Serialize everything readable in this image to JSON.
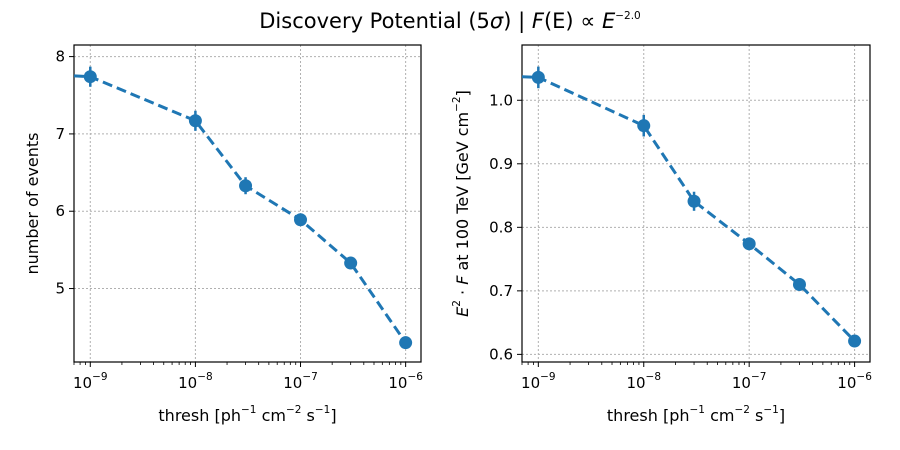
{
  "figure": {
    "title": "Discovery Potential (5σ) | F(E) ∝ E⁻²·⁰",
    "title_parts": {
      "prefix": "Discovery Potential (5",
      "sigma": "σ",
      "mid": ") | ",
      "F": "F",
      "E_paren": "(E)",
      "prop": " ∝ ",
      "E": "E",
      "exponent": "−2.0"
    }
  },
  "colors": {
    "series": "#1f77b4",
    "grid": "#b0b0b0"
  },
  "chart_data": [
    {
      "type": "line",
      "xscale": "log",
      "xlim": [
        7e-10,
        1.4e-06
      ],
      "ylim": [
        4.05,
        8.15
      ],
      "xticks": [
        1e-09,
        1e-08,
        1e-07,
        1e-06
      ],
      "xtick_labels": [
        {
          "base": "10",
          "exp": "−9"
        },
        {
          "base": "10",
          "exp": "−8"
        },
        {
          "base": "10",
          "exp": "−7"
        },
        {
          "base": "10",
          "exp": "−6"
        }
      ],
      "yticks": [
        5,
        6,
        7,
        8
      ],
      "ytick_labels": [
        "5",
        "6",
        "7",
        "8"
      ],
      "xlabel": {
        "text": "thresh    [ph",
        "e1": "−1",
        "t2": " cm",
        "e2": "−2",
        "t3": " s",
        "e3": "−1",
        "t4": "]"
      },
      "ylabel": "number of events",
      "grid": true,
      "series": [
        {
          "x": [
            1e-09,
            1e-08,
            3e-08,
            1e-07,
            3e-07,
            1e-06
          ],
          "y": [
            7.74,
            7.17,
            6.33,
            5.89,
            5.33,
            4.3
          ],
          "yerr": [
            0.13,
            0.13,
            0.11,
            0.07,
            0.07,
            0.05
          ],
          "xextend": 7e-10,
          "yextend": 7.75
        }
      ]
    },
    {
      "type": "line",
      "xscale": "log",
      "xlim": [
        7e-10,
        1.4e-06
      ],
      "ylim": [
        0.588,
        1.087
      ],
      "xticks": [
        1e-09,
        1e-08,
        1e-07,
        1e-06
      ],
      "xtick_labels": [
        {
          "base": "10",
          "exp": "−9"
        },
        {
          "base": "10",
          "exp": "−8"
        },
        {
          "base": "10",
          "exp": "−7"
        },
        {
          "base": "10",
          "exp": "−6"
        }
      ],
      "yticks": [
        0.6,
        0.7,
        0.8,
        0.9,
        1.0
      ],
      "ytick_labels": [
        "0.6",
        "0.7",
        "0.8",
        "0.9",
        "1.0"
      ],
      "xlabel": {
        "text": "thresh    [ph",
        "e1": "−1",
        "t2": " cm",
        "e2": "−2",
        "t3": " s",
        "e3": "−1",
        "t4": "]"
      },
      "ylabel": {
        "E": "E",
        "e1": "2",
        "t1": " · ",
        "F": "F",
        "t2": " at 100 TeV    [GeV cm",
        "e2": "−2",
        "t3": "]"
      },
      "grid": true,
      "series": [
        {
          "x": [
            1e-09,
            1e-08,
            3e-08,
            1e-07,
            3e-07,
            1e-06
          ],
          "y": [
            1.036,
            0.96,
            0.841,
            0.774,
            0.71,
            0.621
          ],
          "yerr": [
            0.017,
            0.017,
            0.015,
            0.009,
            0.009,
            0.006
          ],
          "xextend": 7e-10,
          "yextend": 1.037
        }
      ]
    }
  ]
}
